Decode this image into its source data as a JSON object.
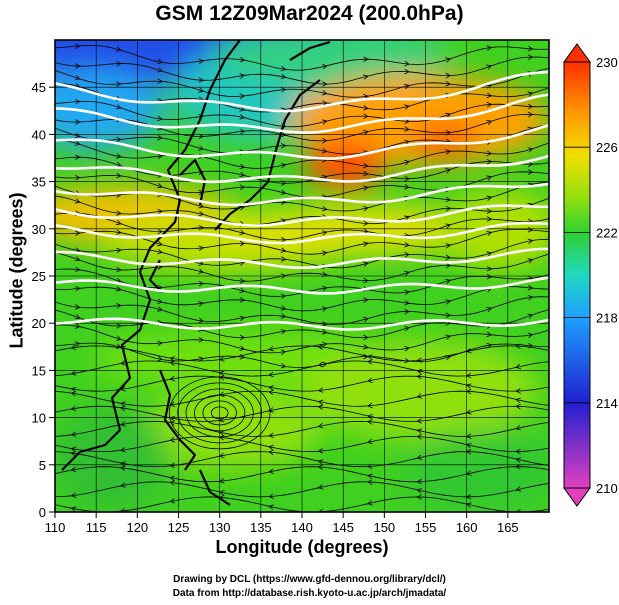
{
  "title": "GSM 12Z09Mar2024 (200.0hPa)",
  "x_axis_label": "Longitude (degrees)",
  "y_axis_label": "Latitude  (degrees)",
  "credits": [
    "Drawing by DCL (https://www.gfd-dennou.org/library/dcl/)",
    "Data from http://database.rish.kyoto-u.ac.jp/arch/jmadata/"
  ],
  "chart_data": {
    "type": "heatmap",
    "field": "temperature (colour) with wind streamlines",
    "xlim": [
      110,
      170
    ],
    "ylim": [
      0,
      50
    ],
    "x_ticks": [
      110,
      115,
      120,
      125,
      130,
      135,
      140,
      145,
      150,
      155,
      160,
      165
    ],
    "y_ticks": [
      0,
      5,
      10,
      15,
      20,
      25,
      30,
      35,
      40,
      45
    ],
    "colorbar": {
      "min": 210,
      "max": 230,
      "ticks": [
        210,
        214,
        218,
        222,
        226,
        230
      ],
      "stops": [
        "#e040c0",
        "#2020d0",
        "#20a0ff",
        "#20d8c0",
        "#30d030",
        "#90e010",
        "#f0e000",
        "#ff9800",
        "#ff3000"
      ]
    },
    "grid": true,
    "isotach_color": "#ffffff",
    "isotach_latitudes": [
      20.3,
      24.3,
      27.2,
      30.0,
      32.0,
      34.3,
      36.8,
      39.5,
      42.5,
      45.0
    ],
    "warm_max_near": [
      145,
      39
    ],
    "warm_max_near_2": [
      158,
      40
    ],
    "cold_min_near": [
      126,
      49
    ],
    "anticyclone_near": [
      130,
      10.5
    ]
  },
  "colors": {
    "frame": "#000000",
    "background": "#ffffff"
  }
}
